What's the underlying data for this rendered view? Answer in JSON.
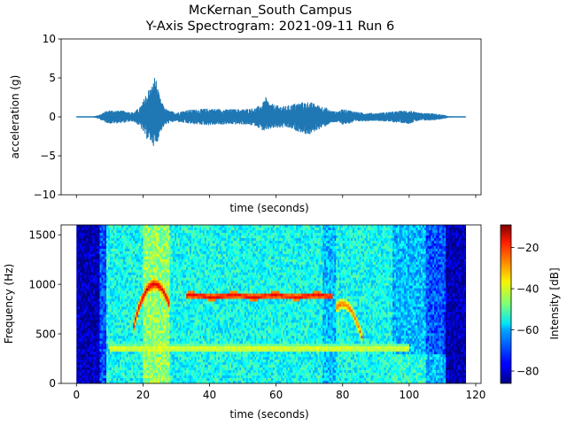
{
  "title_line1": "McKernan_South Campus",
  "title_line2": "Y-Axis Spectrogram: 2021-09-11 Run 6",
  "chart_data": [
    {
      "type": "line",
      "name": "acceleration waveform",
      "xlabel": "time (seconds)",
      "ylabel": "acceleration (g)",
      "ylim": [
        -10,
        10
      ],
      "xlim": [
        -4.6,
        121.6
      ],
      "yticks": [
        10,
        5,
        0,
        -5,
        -10
      ],
      "ytick_labels": [
        "10",
        "5",
        "0",
        "−5",
        "−10"
      ],
      "color": "#1f77b4",
      "envelope": {
        "t": [
          0,
          5,
          7,
          8,
          10,
          14,
          17,
          19,
          20,
          21,
          22,
          23,
          23.6,
          24,
          25,
          26,
          27,
          28,
          30,
          33,
          36,
          40,
          45,
          50,
          54,
          56,
          57,
          58,
          60,
          63,
          66,
          70,
          72,
          74,
          75,
          76,
          78,
          80,
          82,
          85,
          90,
          95,
          98,
          100,
          102,
          104,
          106,
          108,
          110,
          111,
          112,
          115,
          117
        ],
        "max": [
          0.03,
          0.05,
          0.3,
          0.6,
          0.9,
          0.8,
          0.6,
          1.2,
          2.0,
          3.2,
          3.8,
          4.3,
          5.6,
          4.8,
          2.6,
          1.6,
          1.0,
          0.8,
          0.6,
          0.9,
          1.0,
          1.1,
          1.0,
          1.0,
          1.2,
          1.8,
          2.6,
          1.8,
          1.5,
          1.4,
          1.8,
          2.0,
          1.6,
          1.4,
          1.2,
          0.9,
          0.7,
          1.0,
          0.9,
          0.6,
          0.5,
          0.7,
          0.8,
          0.9,
          0.6,
          0.5,
          0.5,
          0.4,
          0.3,
          0.2,
          0.08,
          0.05,
          0.03
        ],
        "min": [
          -0.03,
          -0.05,
          -0.3,
          -0.6,
          -0.9,
          -0.8,
          -0.6,
          -1.2,
          -2.0,
          -2.8,
          -3.2,
          -3.6,
          -4.1,
          -3.8,
          -2.2,
          -1.4,
          -1.0,
          -0.8,
          -0.6,
          -0.9,
          -1.0,
          -1.1,
          -1.0,
          -1.0,
          -1.2,
          -1.8,
          -2.0,
          -1.6,
          -1.5,
          -1.4,
          -1.8,
          -2.4,
          -1.8,
          -1.4,
          -1.2,
          -0.9,
          -0.7,
          -1.0,
          -0.9,
          -0.6,
          -0.5,
          -0.7,
          -0.8,
          -0.9,
          -0.6,
          -0.5,
          -0.5,
          -0.4,
          -0.3,
          -0.2,
          -0.08,
          -0.05,
          -0.03
        ]
      }
    },
    {
      "type": "heatmap",
      "name": "spectrogram",
      "xlabel": "time (seconds)",
      "ylabel": "Frequency (Hz)",
      "xlim": [
        -4.6,
        121.6
      ],
      "ylim": [
        0,
        1600
      ],
      "xticks": [
        0,
        20,
        40,
        60,
        80,
        100,
        120
      ],
      "yticks": [
        0,
        500,
        1000,
        1500
      ],
      "colormap": "jet",
      "data_extent_seconds": [
        0,
        117
      ],
      "features": [
        {
          "kind": "tonal_band",
          "t": [
            33,
            77
          ],
          "freq_hz": 880,
          "level_db": -18
        },
        {
          "kind": "doppler_arc",
          "t": [
            17,
            28
          ],
          "peak_t": 23.5,
          "peak_freq_hz": 1000,
          "level_db": -15
        },
        {
          "kind": "doppler_arc",
          "t": [
            78,
            86
          ],
          "peak_t": 80,
          "peak_freq_hz": 800,
          "level_db": -25
        },
        {
          "kind": "low_band",
          "t": [
            10,
            100
          ],
          "freq_hz": 350,
          "level_db": -38
        }
      ],
      "colorbar": {
        "label": "Intensity [dB]",
        "range": [
          -86,
          -9
        ],
        "ticks": [
          -20,
          -40,
          -60,
          -80
        ],
        "tick_labels": [
          "−20",
          "−40",
          "−60",
          "−80"
        ]
      }
    }
  ]
}
